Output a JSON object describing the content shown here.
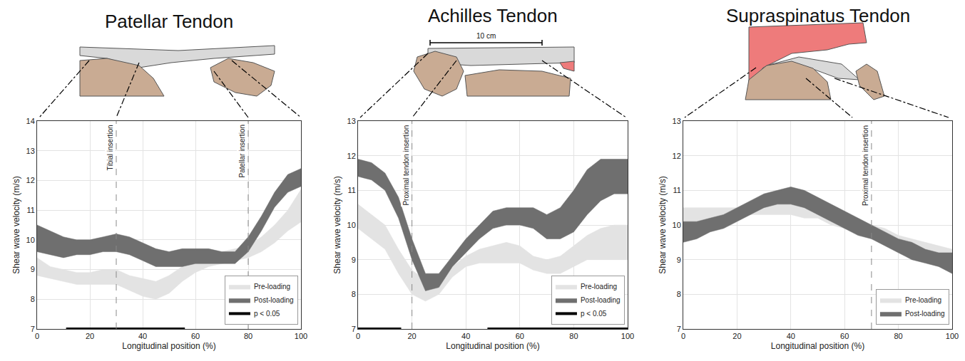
{
  "chart_data": [
    {
      "type": "band",
      "title": "Patellar Tendon",
      "x_label": "Longitudinal position (%)",
      "y_label": "Shear wave velocity (m/s)",
      "x": [
        0,
        5,
        10,
        15,
        20,
        25,
        30,
        35,
        40,
        45,
        50,
        55,
        60,
        65,
        70,
        75,
        80,
        85,
        90,
        95,
        100
      ],
      "xlim": [
        0,
        100
      ],
      "xticks": [
        0,
        20,
        40,
        60,
        80,
        100
      ],
      "ylim": [
        7,
        14
      ],
      "yticks": [
        7,
        8,
        9,
        10,
        11,
        12,
        13,
        14
      ],
      "grid": true,
      "legend": "lower right",
      "series": [
        {
          "name": "Pre-loading",
          "type": "band",
          "color": "#e3e3e3",
          "lower": [
            8.8,
            8.7,
            8.6,
            8.5,
            8.5,
            8.5,
            8.5,
            8.3,
            8.1,
            8.0,
            8.2,
            8.6,
            8.9,
            9.1,
            9.2,
            9.3,
            9.4,
            9.6,
            9.9,
            10.3,
            10.6
          ],
          "upper": [
            9.4,
            9.1,
            9.0,
            8.9,
            8.9,
            9.0,
            9.0,
            8.8,
            8.7,
            8.6,
            8.8,
            9.1,
            9.4,
            9.5,
            9.6,
            9.7,
            9.8,
            10.1,
            10.5,
            11.0,
            11.7
          ]
        },
        {
          "name": "Post-loading",
          "type": "band",
          "color": "#6f6f6f",
          "lower": [
            9.6,
            9.5,
            9.4,
            9.5,
            9.5,
            9.6,
            9.6,
            9.5,
            9.3,
            9.1,
            9.1,
            9.1,
            9.2,
            9.2,
            9.2,
            9.2,
            9.6,
            10.3,
            11.1,
            11.6,
            11.8
          ],
          "upper": [
            10.5,
            10.3,
            10.1,
            10.0,
            10.0,
            10.1,
            10.2,
            10.1,
            9.9,
            9.7,
            9.6,
            9.7,
            9.7,
            9.7,
            9.6,
            9.6,
            10.1,
            10.8,
            11.6,
            12.2,
            12.4
          ]
        },
        {
          "name": "p < 0.05",
          "type": "segment",
          "color": "#000000",
          "x_ranges": [
            [
              11,
              56
            ]
          ]
        }
      ],
      "annotations": [
        {
          "x": 30,
          "text": "Tibial insertion"
        },
        {
          "x": 80,
          "text": "Patellar insertion"
        }
      ]
    },
    {
      "type": "band",
      "title": "Achilles Tendon",
      "scale_label": "10 cm",
      "x_label": "Longitudinal position (%)",
      "y_label": "Shear wave velocity (m/s)",
      "x": [
        0,
        5,
        10,
        15,
        20,
        25,
        30,
        35,
        40,
        45,
        50,
        55,
        60,
        65,
        70,
        75,
        80,
        85,
        90,
        95,
        100
      ],
      "xlim": [
        0,
        100
      ],
      "xticks": [
        0,
        20,
        40,
        60,
        80,
        100
      ],
      "ylim": [
        7,
        13
      ],
      "yticks": [
        7,
        8,
        9,
        10,
        11,
        12,
        13
      ],
      "grid": true,
      "legend": "lower right",
      "series": [
        {
          "name": "Pre-loading",
          "type": "band",
          "color": "#e3e3e3",
          "lower": [
            9.9,
            9.6,
            9.3,
            8.6,
            8.0,
            7.8,
            8.0,
            8.5,
            8.8,
            8.9,
            8.9,
            8.9,
            8.9,
            8.7,
            8.6,
            8.6,
            8.8,
            9.0,
            9.0,
            9.0,
            9.0
          ],
          "upper": [
            10.6,
            10.3,
            10.0,
            9.3,
            8.7,
            8.4,
            8.5,
            8.8,
            9.1,
            9.3,
            9.4,
            9.5,
            9.4,
            9.1,
            9.0,
            9.1,
            9.4,
            9.7,
            9.9,
            10.0,
            10.0
          ]
        },
        {
          "name": "Post-loading",
          "type": "band",
          "color": "#6f6f6f",
          "lower": [
            11.4,
            11.3,
            11.0,
            10.2,
            9.0,
            8.1,
            8.2,
            8.8,
            9.2,
            9.6,
            9.9,
            10.0,
            10.0,
            9.9,
            9.6,
            9.6,
            9.8,
            10.3,
            10.7,
            10.9,
            10.9
          ],
          "upper": [
            11.9,
            11.8,
            11.5,
            10.8,
            9.6,
            8.6,
            8.6,
            9.1,
            9.6,
            10.0,
            10.4,
            10.5,
            10.5,
            10.5,
            10.3,
            10.5,
            11.0,
            11.6,
            11.9,
            11.9,
            11.9
          ]
        },
        {
          "name": "p < 0.05",
          "type": "segment",
          "color": "#000000",
          "x_ranges": [
            [
              0,
              16
            ],
            [
              48,
              100
            ]
          ]
        }
      ],
      "annotations": [
        {
          "x": 20,
          "text": "Proximal tendon insertion"
        }
      ]
    },
    {
      "type": "band",
      "title": "Supraspinatus Tendon",
      "x_label": "Longitudinal position (%)",
      "y_label": "Shear wave velocity (m/s)",
      "x": [
        0,
        5,
        10,
        15,
        20,
        25,
        30,
        35,
        40,
        45,
        50,
        55,
        60,
        65,
        70,
        75,
        80,
        85,
        90,
        95,
        100
      ],
      "xlim": [
        0,
        100
      ],
      "xticks": [
        0,
        20,
        40,
        60,
        80,
        100
      ],
      "ylim": [
        7,
        13
      ],
      "yticks": [
        7,
        8,
        9,
        10,
        11,
        12,
        13
      ],
      "grid": true,
      "legend": "lower right",
      "series": [
        {
          "name": "Pre-loading",
          "type": "band",
          "color": "#e3e3e3",
          "lower": [
            9.9,
            9.9,
            10.0,
            10.1,
            10.2,
            10.3,
            10.3,
            10.3,
            10.3,
            10.2,
            10.2,
            10.0,
            9.9,
            9.8,
            9.6,
            9.5,
            9.4,
            9.2,
            9.1,
            9.0,
            8.9
          ],
          "upper": [
            10.5,
            10.5,
            10.5,
            10.5,
            10.5,
            10.6,
            10.6,
            10.6,
            10.7,
            10.6,
            10.5,
            10.4,
            10.2,
            10.1,
            10.0,
            9.9,
            9.7,
            9.6,
            9.5,
            9.4,
            9.3
          ]
        },
        {
          "name": "Post-loading",
          "type": "band",
          "color": "#6f6f6f",
          "lower": [
            9.5,
            9.6,
            9.8,
            9.9,
            10.1,
            10.3,
            10.5,
            10.6,
            10.6,
            10.5,
            10.3,
            10.1,
            9.9,
            9.7,
            9.6,
            9.4,
            9.2,
            9.0,
            8.9,
            8.8,
            8.6
          ],
          "upper": [
            10.1,
            10.1,
            10.2,
            10.3,
            10.5,
            10.7,
            10.9,
            11.0,
            11.1,
            11.0,
            10.8,
            10.6,
            10.4,
            10.2,
            10.0,
            9.8,
            9.6,
            9.5,
            9.3,
            9.2,
            9.2
          ]
        }
      ],
      "annotations": [
        {
          "x": 70,
          "text": "Proximal tendon insertion"
        }
      ]
    }
  ]
}
